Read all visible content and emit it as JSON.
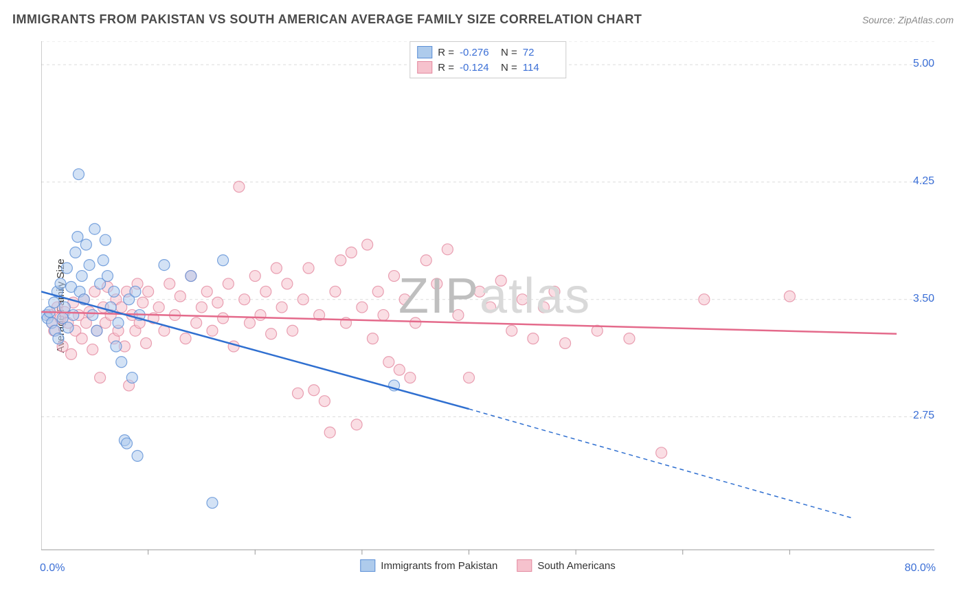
{
  "title": "IMMIGRANTS FROM PAKISTAN VS SOUTH AMERICAN AVERAGE FAMILY SIZE CORRELATION CHART",
  "source": "Source: ZipAtlas.com",
  "ylabel": "Average Family Size",
  "watermark_a": "ZIP",
  "watermark_b": "atlas",
  "colors": {
    "blue_fill": "#aecbec",
    "blue_stroke": "#5b8fd6",
    "blue_line": "#2f6fd0",
    "pink_fill": "#f6c2cd",
    "pink_stroke": "#e38aa0",
    "pink_line": "#e46a8b",
    "grid": "#dcdcdc",
    "axis": "#999999",
    "text": "#4a4a4a",
    "tick_text": "#3b6fd6",
    "watermark": "#d9d9d9",
    "background": "#ffffff"
  },
  "chart": {
    "type": "scatter",
    "xlim": [
      0,
      80
    ],
    "ylim": [
      1.9,
      5.15
    ],
    "y_ticks": [
      2.75,
      3.5,
      4.25,
      5.0
    ],
    "x_tick_positions": [
      10,
      20,
      30,
      40,
      50,
      60,
      70
    ],
    "x_min_label": "0.0%",
    "x_max_label": "80.0%",
    "marker_radius": 8,
    "marker_opacity": 0.55,
    "line_width": 2.5,
    "grid_dash": "4,4"
  },
  "legend_top": [
    {
      "swatch": "blue",
      "r_label": "R =",
      "r_val": "-0.276",
      "n_label": "N =",
      "n_val": "72"
    },
    {
      "swatch": "pink",
      "r_label": "R =",
      "r_val": "-0.124",
      "n_label": "N =",
      "n_val": "114"
    }
  ],
  "legend_bottom": [
    {
      "swatch": "blue",
      "label": "Immigrants from Pakistan"
    },
    {
      "swatch": "pink",
      "label": "South Americans"
    }
  ],
  "series": {
    "blue": {
      "trend": {
        "x1": 0,
        "y1": 3.55,
        "x2_solid": 40,
        "y2_solid": 2.8,
        "x2_dash": 76,
        "y2_dash": 2.1
      },
      "points": [
        [
          0.5,
          3.4
        ],
        [
          0.6,
          3.38
        ],
        [
          0.8,
          3.42
        ],
        [
          1.0,
          3.35
        ],
        [
          1.2,
          3.48
        ],
        [
          1.3,
          3.3
        ],
        [
          1.5,
          3.55
        ],
        [
          1.6,
          3.25
        ],
        [
          1.8,
          3.6
        ],
        [
          2.0,
          3.38
        ],
        [
          2.2,
          3.45
        ],
        [
          2.4,
          3.7
        ],
        [
          2.5,
          3.32
        ],
        [
          2.8,
          3.58
        ],
        [
          3.0,
          3.4
        ],
        [
          3.2,
          3.8
        ],
        [
          3.4,
          3.9
        ],
        [
          3.5,
          4.3
        ],
        [
          3.6,
          3.55
        ],
        [
          3.8,
          3.65
        ],
        [
          4.0,
          3.5
        ],
        [
          4.2,
          3.85
        ],
        [
          4.5,
          3.72
        ],
        [
          4.8,
          3.4
        ],
        [
          5.0,
          3.95
        ],
        [
          5.2,
          3.3
        ],
        [
          5.5,
          3.6
        ],
        [
          5.8,
          3.75
        ],
        [
          6.0,
          3.88
        ],
        [
          6.2,
          3.65
        ],
        [
          6.5,
          3.45
        ],
        [
          6.8,
          3.55
        ],
        [
          7.0,
          3.2
        ],
        [
          7.2,
          3.35
        ],
        [
          7.5,
          3.1
        ],
        [
          7.8,
          2.6
        ],
        [
          8.0,
          2.58
        ],
        [
          8.2,
          3.5
        ],
        [
          8.5,
          3.0
        ],
        [
          8.8,
          3.55
        ],
        [
          9.0,
          2.5
        ],
        [
          9.2,
          3.4
        ],
        [
          11.5,
          3.72
        ],
        [
          14.0,
          3.65
        ],
        [
          16.0,
          2.2
        ],
        [
          17.0,
          3.75
        ],
        [
          33.0,
          2.95
        ]
      ]
    },
    "pink": {
      "trend": {
        "x1": 0,
        "y1": 3.42,
        "x2": 80,
        "y2": 3.28
      },
      "points": [
        [
          0.8,
          3.4
        ],
        [
          1.0,
          3.35
        ],
        [
          1.2,
          3.3
        ],
        [
          1.5,
          3.45
        ],
        [
          1.8,
          3.38
        ],
        [
          2.0,
          3.2
        ],
        [
          2.2,
          3.42
        ],
        [
          2.5,
          3.35
        ],
        [
          2.8,
          3.15
        ],
        [
          3.0,
          3.48
        ],
        [
          3.2,
          3.3
        ],
        [
          3.5,
          3.4
        ],
        [
          3.8,
          3.25
        ],
        [
          4.0,
          3.5
        ],
        [
          4.2,
          3.35
        ],
        [
          4.5,
          3.42
        ],
        [
          4.8,
          3.18
        ],
        [
          5.0,
          3.55
        ],
        [
          5.2,
          3.3
        ],
        [
          5.5,
          3.0
        ],
        [
          5.8,
          3.45
        ],
        [
          6.0,
          3.35
        ],
        [
          6.2,
          3.58
        ],
        [
          6.5,
          3.4
        ],
        [
          6.8,
          3.25
        ],
        [
          7.0,
          3.5
        ],
        [
          7.2,
          3.3
        ],
        [
          7.5,
          3.45
        ],
        [
          7.8,
          3.2
        ],
        [
          8.0,
          3.55
        ],
        [
          8.2,
          2.95
        ],
        [
          8.5,
          3.4
        ],
        [
          8.8,
          3.3
        ],
        [
          9.0,
          3.6
        ],
        [
          9.2,
          3.35
        ],
        [
          9.5,
          3.48
        ],
        [
          9.8,
          3.22
        ],
        [
          10.0,
          3.55
        ],
        [
          10.5,
          3.38
        ],
        [
          11.0,
          3.45
        ],
        [
          11.5,
          3.3
        ],
        [
          12.0,
          3.6
        ],
        [
          12.5,
          3.4
        ],
        [
          13.0,
          3.52
        ],
        [
          13.5,
          3.25
        ],
        [
          14.0,
          3.65
        ],
        [
          14.5,
          3.35
        ],
        [
          15.0,
          3.45
        ],
        [
          15.5,
          3.55
        ],
        [
          16.0,
          3.3
        ],
        [
          16.5,
          3.48
        ],
        [
          17.0,
          3.38
        ],
        [
          17.5,
          3.6
        ],
        [
          18.0,
          3.2
        ],
        [
          18.5,
          4.22
        ],
        [
          19.0,
          3.5
        ],
        [
          19.5,
          3.35
        ],
        [
          20.0,
          3.65
        ],
        [
          20.5,
          3.4
        ],
        [
          21.0,
          3.55
        ],
        [
          21.5,
          3.28
        ],
        [
          22.0,
          3.7
        ],
        [
          22.5,
          3.45
        ],
        [
          23.0,
          3.6
        ],
        [
          23.5,
          3.3
        ],
        [
          24.0,
          2.9
        ],
        [
          24.5,
          3.5
        ],
        [
          25.0,
          3.7
        ],
        [
          25.5,
          2.92
        ],
        [
          26.0,
          3.4
        ],
        [
          26.5,
          2.85
        ],
        [
          27.0,
          2.65
        ],
        [
          27.5,
          3.55
        ],
        [
          28.0,
          3.75
        ],
        [
          28.5,
          3.35
        ],
        [
          29.0,
          3.8
        ],
        [
          29.5,
          2.7
        ],
        [
          30.0,
          3.45
        ],
        [
          30.5,
          3.85
        ],
        [
          31.0,
          3.25
        ],
        [
          31.5,
          3.55
        ],
        [
          32.0,
          3.4
        ],
        [
          32.5,
          3.1
        ],
        [
          33.0,
          3.65
        ],
        [
          33.5,
          3.05
        ],
        [
          34.0,
          3.5
        ],
        [
          34.5,
          3.0
        ],
        [
          35.0,
          3.35
        ],
        [
          36.0,
          3.75
        ],
        [
          37.0,
          3.6
        ],
        [
          38.0,
          3.82
        ],
        [
          39.0,
          3.4
        ],
        [
          40.0,
          3.0
        ],
        [
          41.0,
          3.55
        ],
        [
          42.0,
          3.45
        ],
        [
          43.0,
          3.62
        ],
        [
          44.0,
          3.3
        ],
        [
          45.0,
          3.5
        ],
        [
          46.0,
          3.25
        ],
        [
          47.0,
          3.45
        ],
        [
          48.0,
          3.55
        ],
        [
          49.0,
          3.22
        ],
        [
          52.0,
          3.3
        ],
        [
          55.0,
          3.25
        ],
        [
          58.0,
          2.52
        ],
        [
          62.0,
          3.5
        ],
        [
          70.0,
          3.52
        ]
      ]
    }
  }
}
